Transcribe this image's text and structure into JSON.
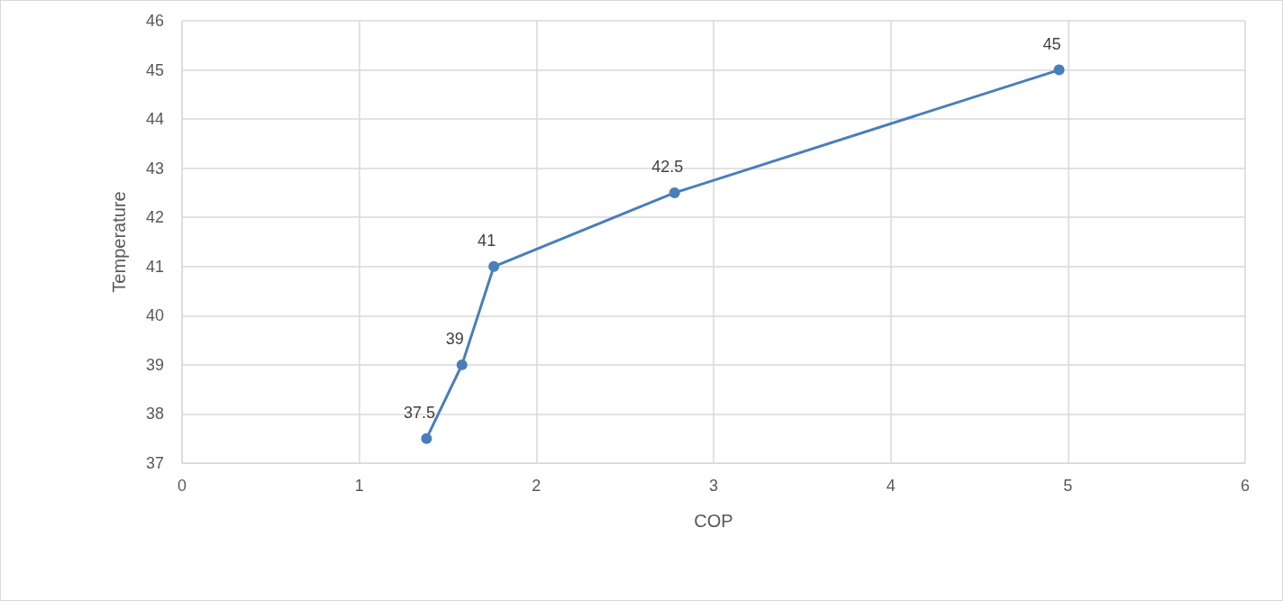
{
  "chart_data": {
    "type": "line",
    "xlabel": "COP",
    "ylabel": "Temperature",
    "x": [
      1.38,
      1.58,
      1.76,
      2.78,
      4.95
    ],
    "series": [
      {
        "color": "#4a7ebb",
        "values": [
          37.5,
          39,
          41,
          42.5,
          45
        ]
      }
    ],
    "xlim": [
      0,
      6
    ],
    "xticks": [
      0,
      1,
      2,
      3,
      4,
      5,
      6
    ],
    "ylim": [
      37,
      46
    ],
    "yticks": [
      37,
      38,
      39,
      40,
      41,
      42,
      43,
      44,
      45,
      46
    ],
    "grid": true,
    "marker": "circle",
    "line_style": "solid",
    "data_labels": true
  }
}
